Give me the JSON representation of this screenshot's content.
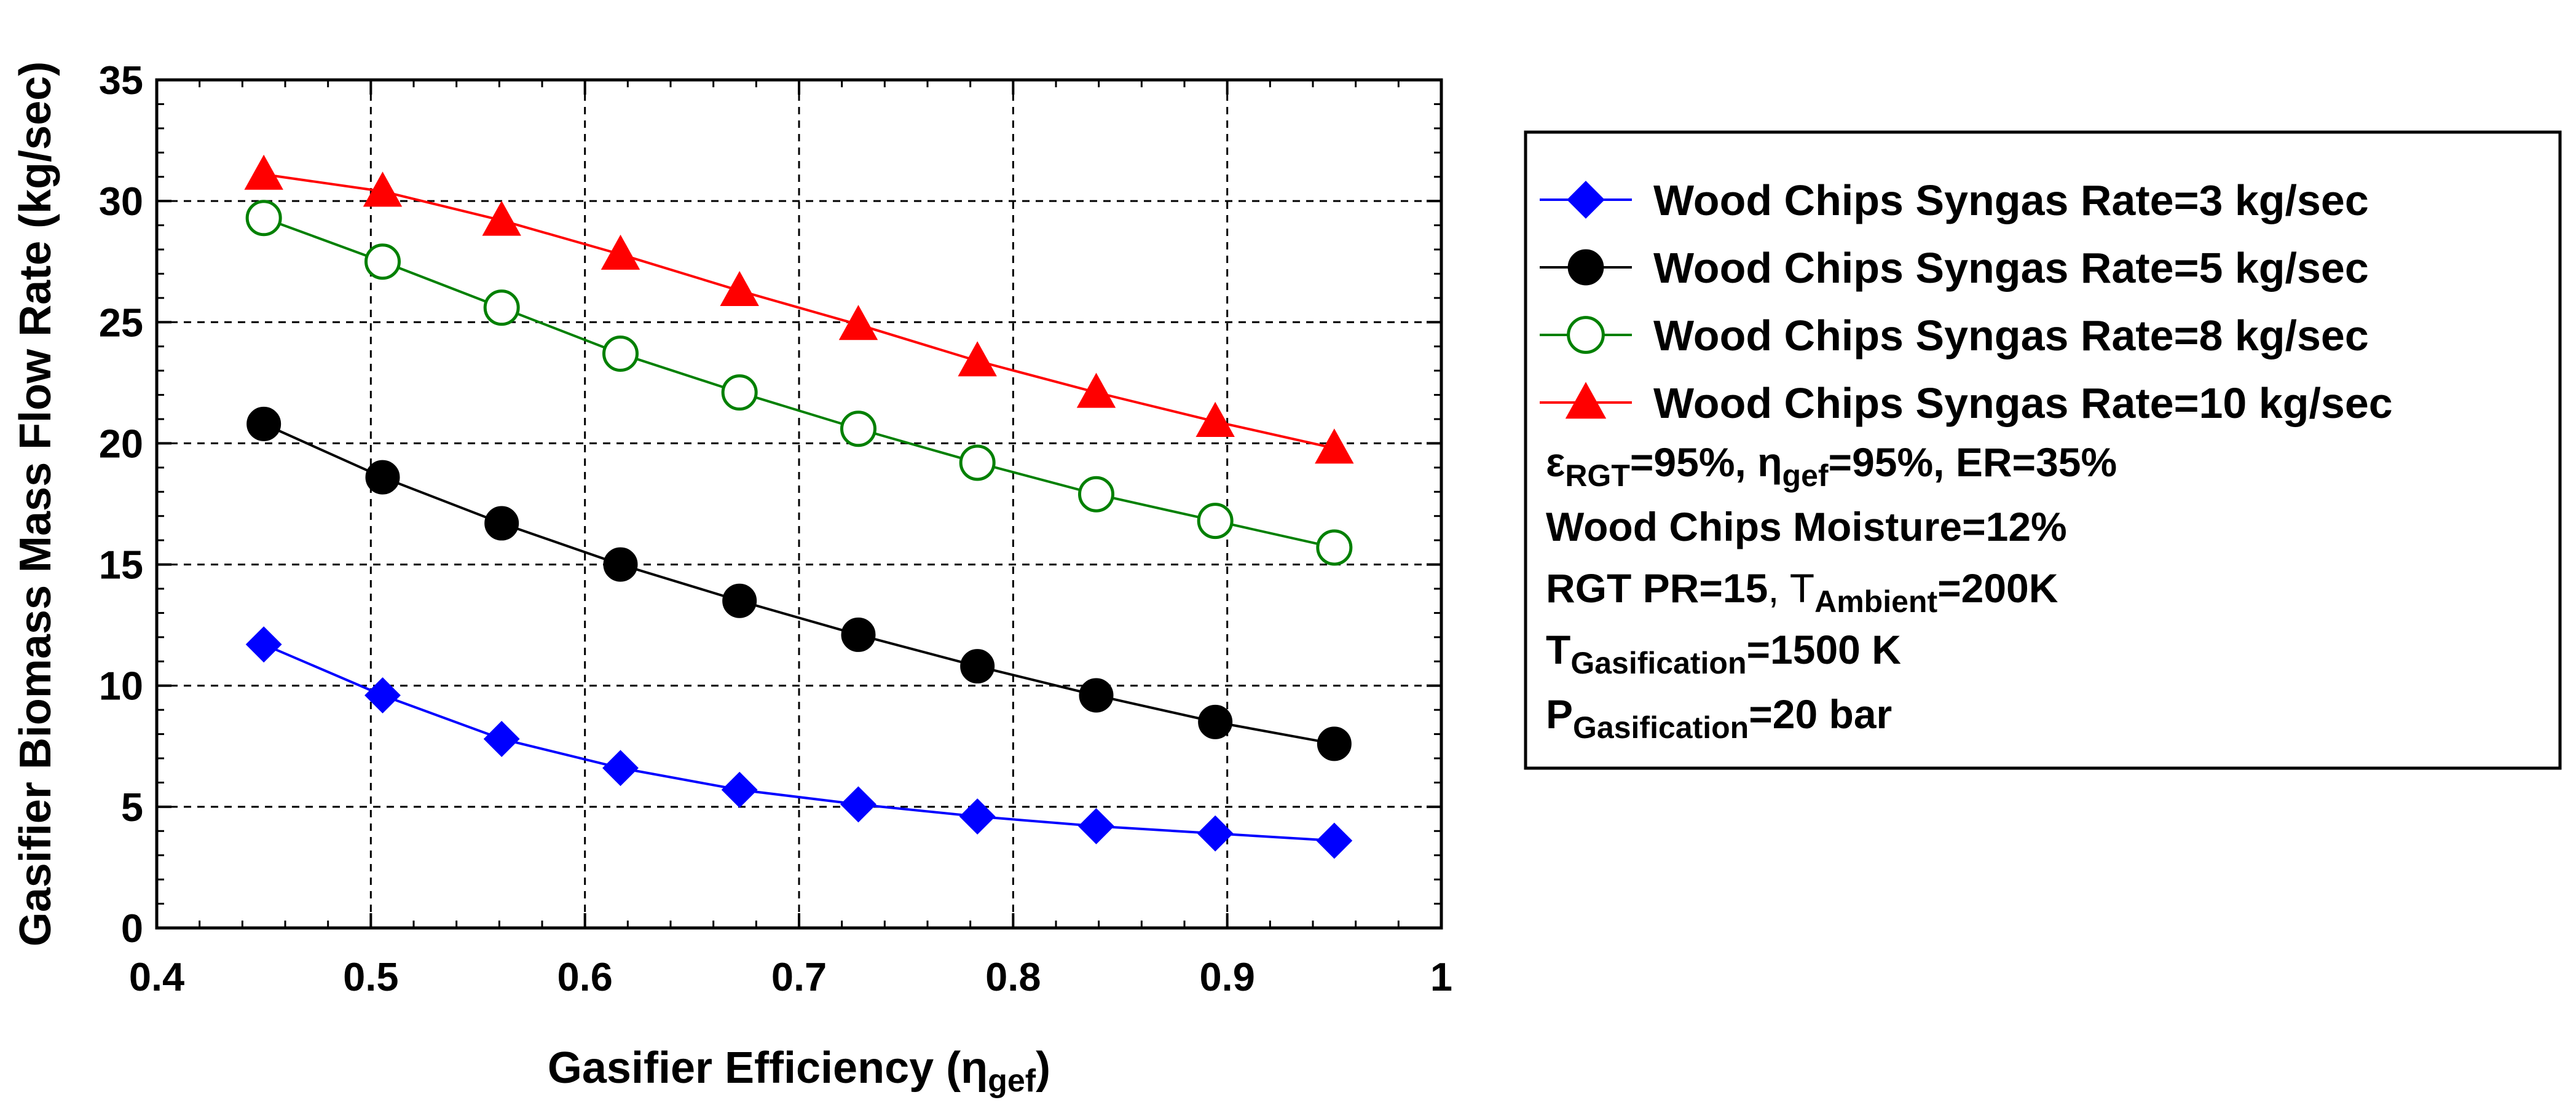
{
  "chart_data": {
    "type": "line",
    "title": "",
    "xlabel": "Gasifier Efficiency (",
    "xlabel_symbol": "η",
    "xlabel_sub": "gef",
    "xlabel_end": ")",
    "ylabel": "Gasifier Biomass Mass Flow Rate (kg/sec)",
    "xlim": [
      0.4,
      1
    ],
    "ylim": [
      0,
      35
    ],
    "xticks": [
      0.4,
      0.5,
      0.6,
      0.7,
      0.8,
      0.9,
      1
    ],
    "xtick_labels": [
      "0.4",
      "0.5",
      "0.6",
      "0.7",
      "0.8",
      "0.9",
      "1"
    ],
    "yticks": [
      0,
      5,
      10,
      15,
      20,
      25,
      30,
      35
    ],
    "ytick_labels": [
      "0",
      "5",
      "10",
      "15",
      "20",
      "25",
      "30",
      "35"
    ],
    "grid": true,
    "legend_position": "right",
    "x": [
      0.45,
      0.5055,
      0.5611,
      0.6166,
      0.6722,
      0.7277,
      0.7833,
      0.8388,
      0.8944,
      0.95
    ],
    "series": [
      {
        "name": "Wood Chips Syngas Rate=3 kg/sec",
        "color": "#0000ff",
        "marker": "diamond",
        "values": [
          11.7,
          9.6,
          7.8,
          6.6,
          5.7,
          5.1,
          4.6,
          4.2,
          3.9,
          3.6
        ]
      },
      {
        "name": "Wood Chips Syngas Rate=5 kg/sec",
        "color": "#000000",
        "marker": "circle-filled",
        "values": [
          20.8,
          18.6,
          16.7,
          15.0,
          13.5,
          12.1,
          10.8,
          9.6,
          8.5,
          7.6
        ]
      },
      {
        "name": "Wood Chips Syngas Rate=8 kg/sec",
        "color": "#008000",
        "marker": "circle-open",
        "values": [
          29.3,
          27.5,
          25.6,
          23.7,
          22.1,
          20.6,
          19.2,
          17.9,
          16.8,
          15.7
        ]
      },
      {
        "name": "Wood Chips Syngas Rate=10 kg/sec",
        "color": "#ff0000",
        "marker": "triangle",
        "values": [
          31.1,
          30.4,
          29.2,
          27.8,
          26.3,
          24.9,
          23.4,
          22.1,
          20.9,
          19.8
        ]
      }
    ],
    "annotations": [
      {
        "id": "note-efficiencies",
        "parts": [
          {
            "text": "ε",
            "sub": false
          },
          {
            "text": "RGT",
            "sub": true
          },
          {
            "text": "=95%, ",
            "sub": false
          },
          {
            "text": "η",
            "sub": false
          },
          {
            "text": "gef",
            "sub": true
          },
          {
            "text": "=95%, ER=35%",
            "sub": false
          }
        ]
      },
      {
        "id": "note-moisture",
        "parts": [
          {
            "text": "Wood Chips Moisture=12%",
            "sub": false
          }
        ]
      },
      {
        "id": "note-pressure-ratio",
        "parts": [
          {
            "text": "RGT PR=15",
            "sub": false
          },
          {
            "text": ", T",
            "sub": false,
            "light": true
          },
          {
            "text": "Ambient",
            "sub": true
          },
          {
            "text": "=200K",
            "sub": false
          }
        ]
      },
      {
        "id": "note-gasification-temp",
        "parts": [
          {
            "text": "T",
            "sub": false
          },
          {
            "text": "Gasification",
            "sub": true
          },
          {
            "text": "=1500 K",
            "sub": false
          }
        ]
      },
      {
        "id": "note-gasification-pressure",
        "parts": [
          {
            "text": "P",
            "sub": false
          },
          {
            "text": "Gasification",
            "sub": true
          },
          {
            "text": "=20 bar",
            "sub": false
          }
        ]
      }
    ]
  }
}
